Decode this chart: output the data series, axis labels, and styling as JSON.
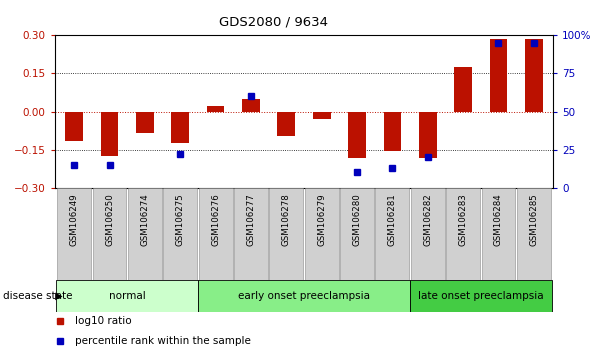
{
  "title": "GDS2080 / 9634",
  "samples": [
    "GSM106249",
    "GSM106250",
    "GSM106274",
    "GSM106275",
    "GSM106276",
    "GSM106277",
    "GSM106278",
    "GSM106279",
    "GSM106280",
    "GSM106281",
    "GSM106282",
    "GSM106283",
    "GSM106284",
    "GSM106285"
  ],
  "log10_ratio": [
    -0.115,
    -0.175,
    -0.085,
    -0.125,
    0.02,
    0.05,
    -0.095,
    -0.03,
    -0.185,
    -0.155,
    -0.185,
    0.175,
    0.285,
    0.285
  ],
  "percentile_rank": [
    15,
    15,
    null,
    22,
    null,
    60,
    null,
    null,
    10,
    13,
    20,
    null,
    95,
    95
  ],
  "ylim_left": [
    -0.3,
    0.3
  ],
  "ylim_right": [
    0,
    100
  ],
  "yticks_left": [
    -0.3,
    -0.15,
    0,
    0.15,
    0.3
  ],
  "yticks_right": [
    0,
    25,
    50,
    75,
    100
  ],
  "ytick_labels_right": [
    "0",
    "25",
    "50",
    "75",
    "100%"
  ],
  "bar_color": "#bb1100",
  "dot_color": "#0000bb",
  "groups": [
    {
      "label": "normal",
      "start": 0,
      "end": 3,
      "color": "#ccffcc"
    },
    {
      "label": "early onset preeclampsia",
      "start": 4,
      "end": 9,
      "color": "#88ee88"
    },
    {
      "label": "late onset preeclampsia",
      "start": 10,
      "end": 13,
      "color": "#44cc44"
    }
  ],
  "legend_items": [
    {
      "label": "log10 ratio",
      "color": "#bb1100"
    },
    {
      "label": "percentile rank within the sample",
      "color": "#0000bb"
    }
  ],
  "disease_state_label": "disease state",
  "bar_width": 0.5
}
